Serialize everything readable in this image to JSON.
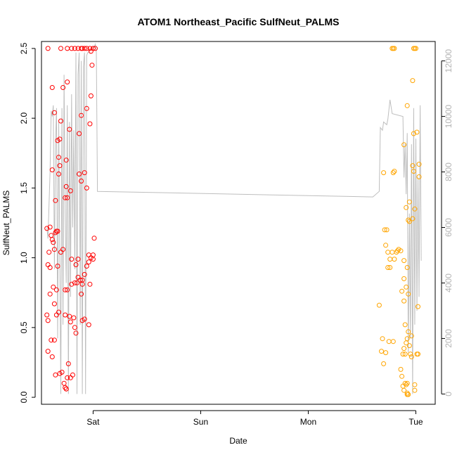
{
  "chart_data": {
    "type": "scatter",
    "title": "ATOM1 Northeast_Pacific SulfNeut_PALMS",
    "xlabel": "Date",
    "ylabel": "SulfNeut_PALMS",
    "x_unit": "days (Fri 00:00 = 0)",
    "x_ticks": [
      {
        "value": 1,
        "label": "Sat"
      },
      {
        "value": 2,
        "label": "Sun"
      },
      {
        "value": 3,
        "label": "Mon"
      },
      {
        "value": 4,
        "label": "Tue"
      }
    ],
    "xlim": [
      0.52,
      4.18
    ],
    "ylim": [
      -0.05,
      2.55
    ],
    "y_ticks": [
      0.0,
      0.5,
      1.0,
      1.5,
      2.0,
      2.5
    ],
    "y_tick_labels": [
      "0.0",
      "0.5",
      "1.0",
      "1.5",
      "2.0",
      "2.5"
    ],
    "right_axis": {
      "label": "",
      "ylim": [
        -370,
        12700
      ],
      "ticks": [
        0,
        2000,
        4000,
        6000,
        8000,
        10000,
        12000
      ],
      "tick_labels": [
        "0",
        "2000",
        "4000",
        "6000",
        "8000",
        "10000",
        "12000"
      ],
      "color": "#bebebe"
    },
    "grid": false,
    "colors": {
      "series1": "#ff0000",
      "series2": "#ffa500",
      "line": "#bebebe"
    },
    "series": [
      {
        "name": "",
        "color": "#ff0000",
        "marker": "open-circle",
        "points": [
          [
            0.58,
            2.5
          ],
          [
            0.62,
            2.22
          ],
          [
            0.64,
            2.04
          ],
          [
            0.7,
            2.5
          ],
          [
            0.72,
            2.22
          ],
          [
            0.76,
            2.5
          ],
          [
            0.8,
            2.5
          ],
          [
            0.83,
            2.5
          ],
          [
            0.86,
            2.5
          ],
          [
            0.89,
            2.5
          ],
          [
            0.9,
            2.5
          ],
          [
            0.92,
            2.5
          ],
          [
            0.94,
            2.5
          ],
          [
            0.97,
            2.5
          ],
          [
            0.98,
            2.48
          ],
          [
            1.0,
            2.5
          ],
          [
            1.02,
            2.5
          ],
          [
            0.76,
            2.26
          ],
          [
            0.7,
            1.98
          ],
          [
            0.67,
            1.84
          ],
          [
            0.69,
            1.85
          ],
          [
            0.78,
            1.92
          ],
          [
            0.87,
            1.89
          ],
          [
            0.89,
            2.02
          ],
          [
            0.94,
            2.07
          ],
          [
            0.99,
            2.38
          ],
          [
            0.98,
            2.16
          ],
          [
            0.97,
            1.96
          ],
          [
            0.62,
            1.63
          ],
          [
            0.65,
            1.41
          ],
          [
            0.68,
            1.72
          ],
          [
            0.69,
            1.66
          ],
          [
            0.68,
            1.6
          ],
          [
            0.75,
            1.7
          ],
          [
            0.75,
            1.51
          ],
          [
            0.76,
            1.43
          ],
          [
            0.79,
            1.48
          ],
          [
            0.87,
            1.6
          ],
          [
            0.89,
            1.55
          ],
          [
            0.92,
            1.61
          ],
          [
            0.94,
            1.5
          ],
          [
            0.74,
            1.43
          ],
          [
            0.57,
            1.21
          ],
          [
            0.59,
            1.04
          ],
          [
            0.6,
            1.22
          ],
          [
            0.61,
            1.16
          ],
          [
            0.62,
            1.13
          ],
          [
            0.63,
            1.11
          ],
          [
            0.64,
            1.06
          ],
          [
            0.65,
            1.18
          ],
          [
            0.66,
            1.19
          ],
          [
            0.67,
            0.94
          ],
          [
            0.67,
            1.19
          ],
          [
            0.7,
            1.04
          ],
          [
            0.72,
            1.06
          ],
          [
            0.8,
            0.99
          ],
          [
            0.84,
            0.95
          ],
          [
            0.86,
            0.99
          ],
          [
            0.88,
            0.84
          ],
          [
            0.9,
            0.84
          ],
          [
            0.92,
            0.88
          ],
          [
            0.94,
            0.94
          ],
          [
            0.96,
            0.97
          ],
          [
            0.96,
            1.02
          ],
          [
            0.98,
            1.0
          ],
          [
            1.0,
            1.02
          ],
          [
            1.01,
            1.14
          ],
          [
            1.0,
            0.99
          ],
          [
            0.58,
            0.95
          ],
          [
            0.6,
            0.93
          ],
          [
            0.63,
            0.79
          ],
          [
            0.66,
            0.77
          ],
          [
            0.6,
            0.74
          ],
          [
            0.64,
            0.67
          ],
          [
            0.68,
            0.61
          ],
          [
            0.74,
            0.77
          ],
          [
            0.76,
            0.77
          ],
          [
            0.8,
            0.81
          ],
          [
            0.83,
            0.82
          ],
          [
            0.85,
            0.82
          ],
          [
            0.86,
            0.86
          ],
          [
            0.89,
            0.74
          ],
          [
            0.9,
            0.81
          ],
          [
            0.97,
            0.81
          ],
          [
            0.57,
            0.59
          ],
          [
            0.58,
            0.55
          ],
          [
            0.66,
            0.59
          ],
          [
            0.74,
            0.59
          ],
          [
            0.78,
            0.58
          ],
          [
            0.79,
            0.54
          ],
          [
            0.82,
            0.57
          ],
          [
            0.83,
            0.5
          ],
          [
            0.84,
            0.46
          ],
          [
            0.9,
            0.55
          ],
          [
            0.92,
            0.56
          ],
          [
            0.96,
            0.52
          ],
          [
            0.58,
            0.33
          ],
          [
            0.61,
            0.41
          ],
          [
            0.62,
            0.29
          ],
          [
            0.64,
            0.41
          ],
          [
            0.65,
            0.16
          ],
          [
            0.69,
            0.17
          ],
          [
            0.71,
            0.18
          ],
          [
            0.73,
            0.1
          ],
          [
            0.74,
            0.07
          ],
          [
            0.75,
            0.06
          ],
          [
            0.76,
            0.14
          ],
          [
            0.77,
            0.24
          ],
          [
            0.79,
            0.14
          ],
          [
            0.81,
            0.16
          ],
          [
            0.75,
            0.06
          ]
        ]
      },
      {
        "name": "",
        "color": "#ffa500",
        "marker": "open-circle",
        "points": [
          [
            3.78,
            2.5
          ],
          [
            3.79,
            2.5
          ],
          [
            3.8,
            2.5
          ],
          [
            3.98,
            2.5
          ],
          [
            3.99,
            2.5
          ],
          [
            4.0,
            2.5
          ],
          [
            3.97,
            2.27
          ],
          [
            3.92,
            2.09
          ],
          [
            4.01,
            1.9
          ],
          [
            3.98,
            1.89
          ],
          [
            3.89,
            1.81
          ],
          [
            3.8,
            1.62
          ],
          [
            3.79,
            1.61
          ],
          [
            3.7,
            1.61
          ],
          [
            4.03,
            1.67
          ],
          [
            3.97,
            1.66
          ],
          [
            3.98,
            1.62
          ],
          [
            4.03,
            1.58
          ],
          [
            3.94,
            1.4
          ],
          [
            3.91,
            1.36
          ],
          [
            3.99,
            1.35
          ],
          [
            3.93,
            1.27
          ],
          [
            3.97,
            1.28
          ],
          [
            3.94,
            1.26
          ],
          [
            3.71,
            1.2
          ],
          [
            3.73,
            1.2
          ],
          [
            3.72,
            1.09
          ],
          [
            3.74,
            1.04
          ],
          [
            3.78,
            1.04
          ],
          [
            3.8,
            0.99
          ],
          [
            3.76,
            0.99
          ],
          [
            3.82,
            1.04
          ],
          [
            3.83,
            1.05
          ],
          [
            3.84,
            1.06
          ],
          [
            3.86,
            1.05
          ],
          [
            3.89,
            0.98
          ],
          [
            3.92,
            0.93
          ],
          [
            3.74,
            0.93
          ],
          [
            3.76,
            0.93
          ],
          [
            3.89,
            0.85
          ],
          [
            3.91,
            0.79
          ],
          [
            3.93,
            0.74
          ],
          [
            3.87,
            0.76
          ],
          [
            3.89,
            0.69
          ],
          [
            3.9,
            0.52
          ],
          [
            3.66,
            0.66
          ],
          [
            4.02,
            0.65
          ],
          [
            3.93,
            0.47
          ],
          [
            3.92,
            0.42
          ],
          [
            3.91,
            0.39
          ],
          [
            3.96,
            0.44
          ],
          [
            3.69,
            0.42
          ],
          [
            3.72,
            0.32
          ],
          [
            3.75,
            0.4
          ],
          [
            3.79,
            0.4
          ],
          [
            3.7,
            0.24
          ],
          [
            3.68,
            0.33
          ],
          [
            3.89,
            0.35
          ],
          [
            3.9,
            0.31
          ],
          [
            3.94,
            0.37
          ],
          [
            3.95,
            0.31
          ],
          [
            3.96,
            0.29
          ],
          [
            4.02,
            0.31
          ],
          [
            4.01,
            0.31
          ],
          [
            3.88,
            0.31
          ],
          [
            3.86,
            0.2
          ],
          [
            3.87,
            0.15
          ],
          [
            3.9,
            0.1
          ],
          [
            3.92,
            0.1
          ],
          [
            3.91,
            0.09
          ],
          [
            3.88,
            0.08
          ],
          [
            3.89,
            0.05
          ],
          [
            3.92,
            0.03
          ],
          [
            3.93,
            0.02
          ],
          [
            3.99,
            0.09
          ],
          [
            3.99,
            0.05
          ],
          [
            3.92,
            0.02
          ]
        ]
      }
    ],
    "right_series": {
      "name": "",
      "type": "line",
      "color": "#bebebe",
      "points": [
        [
          0.57,
          6000
        ],
        [
          0.58,
          5600
        ],
        [
          0.6,
          8000
        ],
        [
          0.61,
          10200
        ],
        [
          0.62,
          10000
        ],
        [
          0.63,
          10400
        ],
        [
          0.64,
          4500
        ],
        [
          0.65,
          9000
        ],
        [
          0.66,
          10300
        ],
        [
          0.67,
          2000
        ],
        [
          0.68,
          9800
        ],
        [
          0.7,
          0
        ],
        [
          0.71,
          10300
        ],
        [
          0.72,
          2500
        ],
        [
          0.73,
          11500
        ],
        [
          0.74,
          6500
        ],
        [
          0.75,
          4000
        ],
        [
          0.76,
          10400
        ],
        [
          0.77,
          0
        ],
        [
          0.78,
          9800
        ],
        [
          0.79,
          3500
        ],
        [
          0.8,
          10800
        ],
        [
          0.81,
          6000
        ],
        [
          0.82,
          9500
        ],
        [
          0.83,
          4500
        ],
        [
          0.84,
          12300
        ],
        [
          0.85,
          0
        ],
        [
          0.86,
          11500
        ],
        [
          0.87,
          12300
        ],
        [
          0.88,
          2500
        ],
        [
          0.89,
          12000
        ],
        [
          0.9,
          0
        ],
        [
          0.91,
          11800
        ],
        [
          0.92,
          12300
        ],
        [
          0.93,
          0
        ],
        [
          0.94,
          12200
        ],
        [
          0.95,
          12300
        ],
        [
          0.96,
          12300
        ],
        [
          0.97,
          12400
        ],
        [
          0.98,
          12400
        ],
        [
          0.99,
          12500
        ],
        [
          1.0,
          12500
        ],
        [
          1.01,
          12500
        ],
        [
          1.02,
          12600
        ],
        [
          1.03,
          12400
        ],
        [
          1.04,
          7300
        ],
        [
          3.6,
          7100
        ],
        [
          3.66,
          7300
        ],
        [
          3.67,
          9600
        ],
        [
          3.69,
          9500
        ],
        [
          3.7,
          9800
        ],
        [
          3.73,
          9700
        ],
        [
          3.74,
          9900
        ],
        [
          3.76,
          10600
        ],
        [
          3.78,
          10100
        ],
        [
          3.88,
          10000
        ],
        [
          3.89,
          7800
        ],
        [
          3.9,
          9000
        ],
        [
          3.91,
          7200
        ],
        [
          3.92,
          9400
        ],
        [
          3.93,
          1500
        ],
        [
          3.94,
          6500
        ],
        [
          3.95,
          2000
        ],
        [
          3.96,
          9000
        ],
        [
          3.97,
          0
        ],
        [
          3.98,
          10300
        ],
        [
          3.99,
          2500
        ],
        [
          4.0,
          9200
        ],
        [
          4.01,
          3000
        ],
        [
          4.02,
          7800
        ],
        [
          4.03,
          3500
        ],
        [
          4.04,
          10400
        ],
        [
          4.05,
          4800
        ]
      ]
    }
  }
}
